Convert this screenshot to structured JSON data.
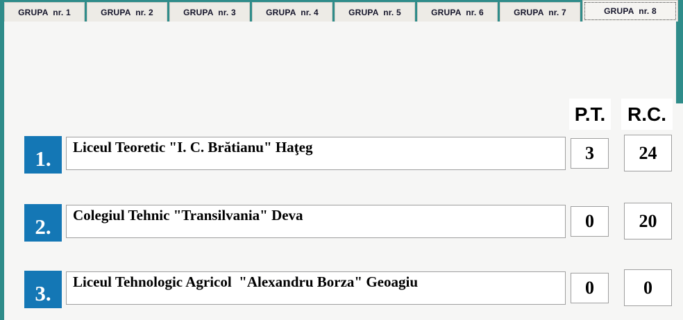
{
  "tabs": [
    {
      "label": "GRUPA  nr. 1"
    },
    {
      "label": "GRUPA  nr. 2"
    },
    {
      "label": "GRUPA  nr. 3"
    },
    {
      "label": "GRUPA  nr. 4"
    },
    {
      "label": "GRUPA  nr. 5"
    },
    {
      "label": "GRUPA  nr. 6"
    },
    {
      "label": "GRUPA  nr. 7"
    },
    {
      "label": "GRUPA  nr. 8",
      "active": true
    }
  ],
  "header": {
    "pt_label": "P.T.",
    "rc_label": "R.C."
  },
  "rows": [
    {
      "rank": "1.",
      "school": "Liceul Teoretic \"I. C. Brătianu\" Haţeg",
      "pt": "3",
      "rc": "24"
    },
    {
      "rank": "2.",
      "school": "Colegiul Tehnic \"Transilvania\" Deva",
      "pt": "0",
      "rc": "20"
    },
    {
      "rank": "3.",
      "school": "Liceul Tehnologic Agricol  \"Alexandru Borza\" Geoagiu",
      "pt": "0",
      "rc": "0"
    }
  ],
  "colors": {
    "frame_teal": "#2f8c8a",
    "rank_blue": "#1477b5",
    "page_bg": "#f6f6f5",
    "box_border": "#9e9e9e"
  }
}
